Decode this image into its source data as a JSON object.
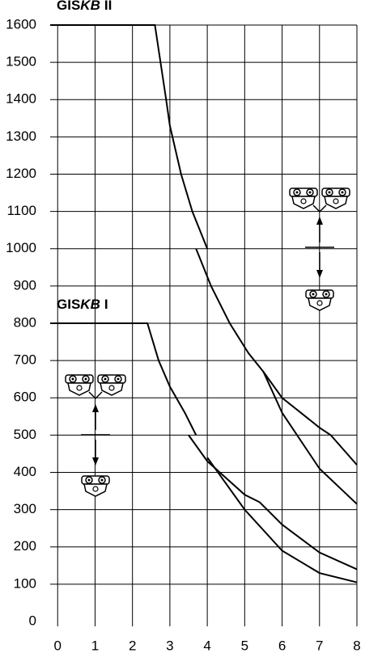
{
  "chart_data": {
    "type": "line",
    "labels": [
      {
        "parts": [
          "GIS",
          "KB",
          "II"
        ]
      },
      {
        "parts": [
          "GIS",
          "KB",
          "I"
        ]
      }
    ],
    "xlim": [
      -0.2,
      8
    ],
    "xticks": [
      0,
      1,
      2,
      3,
      4,
      5,
      6,
      7,
      8
    ],
    "ylim": [
      0,
      1600
    ],
    "yticks": [
      0,
      100,
      200,
      300,
      400,
      500,
      600,
      700,
      800,
      900,
      1000,
      1100,
      1200,
      1300,
      1400,
      1500,
      1600
    ],
    "grid": true,
    "series": [
      {
        "color": "#000000",
        "x": [
          -0.2,
          2.6,
          2.75,
          2.9,
          3.0,
          3.3,
          3.6,
          4.0
        ],
        "values": [
          1600,
          1600,
          1500,
          1400,
          1330,
          1200,
          1100,
          1000
        ]
      },
      {
        "color": "#000000",
        "x": [
          3.7,
          4.1,
          4.6,
          5.1,
          5.5,
          6.0,
          7.0,
          7.3,
          8.0
        ],
        "values": [
          1000,
          900,
          800,
          720,
          670,
          600,
          520,
          500,
          420
        ]
      },
      {
        "color": "#000000",
        "x": [
          5.5,
          6.0,
          7.0,
          8.0
        ],
        "values": [
          670,
          560,
          410,
          315
        ]
      },
      {
        "color": "#000000",
        "x": [
          -0.2,
          2.4,
          2.7,
          3.0,
          3.4,
          3.7
        ],
        "values": [
          800,
          800,
          700,
          630,
          560,
          500
        ]
      },
      {
        "color": "#000000",
        "x": [
          3.5,
          4.0,
          5.0,
          5.4,
          6.0,
          7.0,
          8.0
        ],
        "values": [
          500,
          430,
          340,
          320,
          260,
          185,
          140
        ]
      },
      {
        "color": "#000000",
        "x": [
          4.0,
          5.0,
          6.0,
          7.0,
          8.0
        ],
        "values": [
          440,
          300,
          190,
          130,
          105
        ]
      }
    ]
  }
}
